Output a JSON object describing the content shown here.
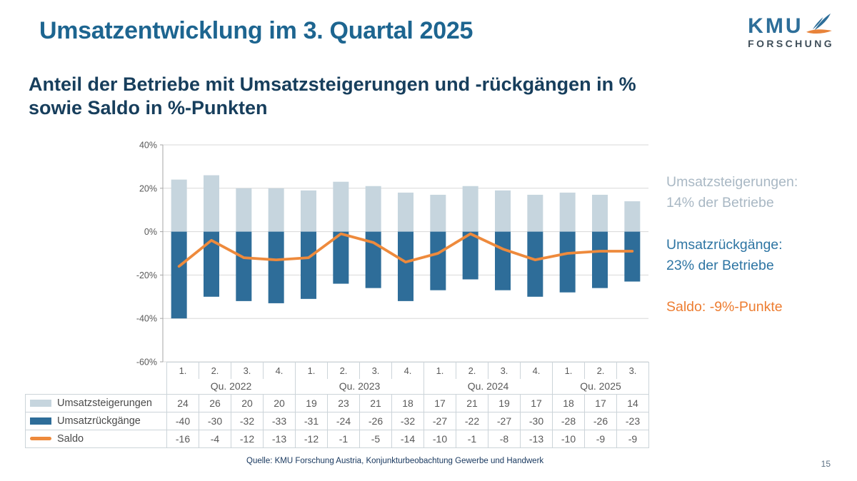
{
  "page": {
    "title": "Umsatzentwicklung im 3. Quartal 2025",
    "subtitle_line1": "Anteil der Betriebe mit Umsatzsteigerungen und -rückgängen in %",
    "subtitle_line2": "sowie Saldo in %-Punkten",
    "source": "Quelle: KMU Forschung Austria, Konjunkturbeobachtung Gewerbe und Handwerk",
    "page_number": "15"
  },
  "logo": {
    "name": "KMU",
    "sub": "FORSCHUNG",
    "icon": "kmu-swoosh-icon",
    "blue": "#2d6e99",
    "orange": "#e8833a"
  },
  "annotations": [
    {
      "lines": [
        "Umsatzsteigerungen:",
        "14% der Betriebe"
      ],
      "color": "#a9b8c4"
    },
    {
      "lines": [
        "Umsatzrückgänge:",
        "23% der Betriebe"
      ],
      "color": "#2e75a3"
    },
    {
      "lines": [
        "Saldo: -9%-Punkte"
      ],
      "color": "#ed7d31"
    }
  ],
  "chart_data": {
    "type": "bar+line",
    "quarter_labels": [
      "1.",
      "2.",
      "3.",
      "4.",
      "1.",
      "2.",
      "3.",
      "4.",
      "1.",
      "2.",
      "3.",
      "4.",
      "1.",
      "2.",
      "3."
    ],
    "year_groups": [
      {
        "label": "Qu. 2022",
        "span": 4
      },
      {
        "label": "Qu. 2023",
        "span": 4
      },
      {
        "label": "Qu. 2024",
        "span": 4
      },
      {
        "label": "Qu. 2025",
        "span": 3
      }
    ],
    "series": [
      {
        "name": "Umsatzsteigerungen",
        "type": "bar",
        "color": "#c6d5de",
        "values": [
          24,
          26,
          20,
          20,
          19,
          23,
          21,
          18,
          17,
          21,
          19,
          17,
          18,
          17,
          14
        ]
      },
      {
        "name": "Umsatzrückgänge",
        "type": "bar",
        "color": "#2e6d99",
        "values": [
          -40,
          -30,
          -32,
          -33,
          -31,
          -24,
          -26,
          -32,
          -27,
          -22,
          -27,
          -30,
          -28,
          -26,
          -23
        ]
      },
      {
        "name": "Saldo",
        "type": "line",
        "color": "#ee8a3c",
        "values": [
          -16,
          -4,
          -12,
          -13,
          -12,
          -1,
          -5,
          -14,
          -10,
          -1,
          -8,
          -13,
          -10,
          -9,
          -9
        ]
      }
    ],
    "y_ticks": [
      40,
      20,
      0,
      -20,
      -40,
      -60
    ],
    "y_tick_suffix": "%",
    "ylim": [
      -60,
      40
    ],
    "grid": true,
    "legend_position": "table-left",
    "axis_color": "#a6a6a6",
    "grid_color": "#d8d8d8",
    "tick_label_color": "#595959"
  }
}
